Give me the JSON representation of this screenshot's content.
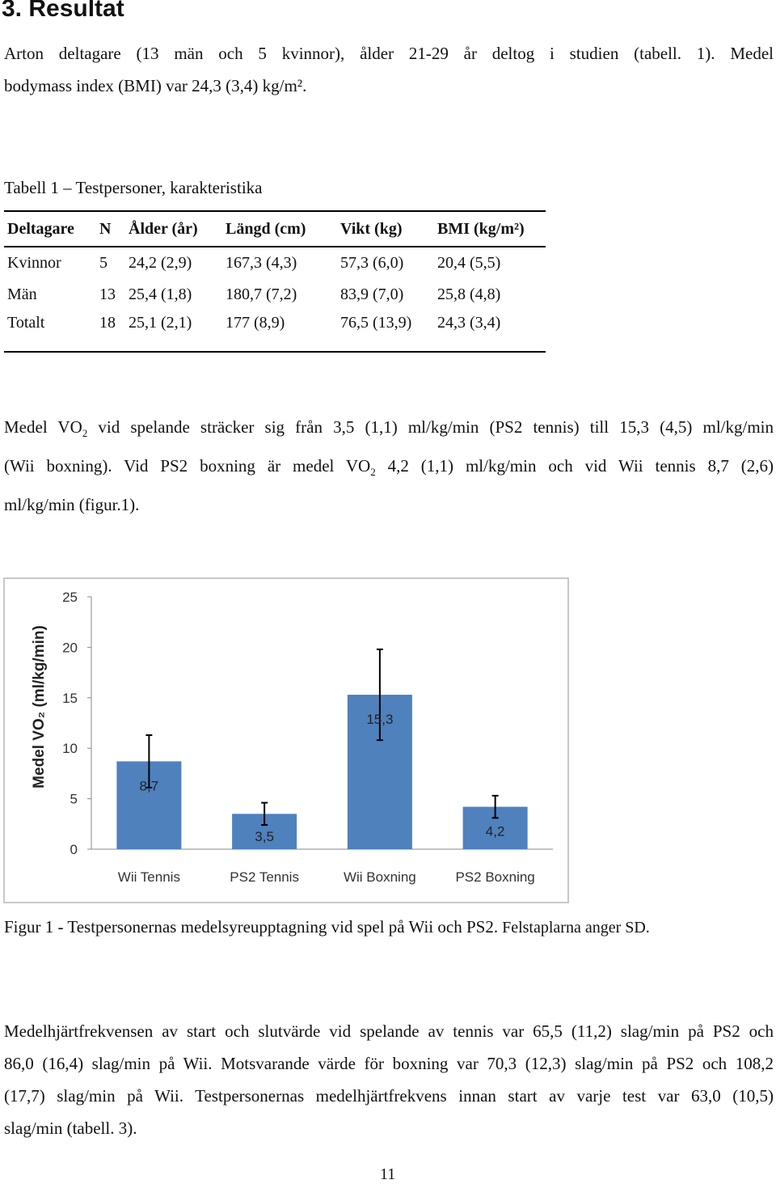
{
  "heading": "3. Resultat",
  "intro": {
    "line1": "Arton deltagare (13 män och 5 kvinnor), ålder 21-29 år deltog i studien (tabell. 1). Medel",
    "line2": "bodymass index (BMI) var 24,3 (3,4) kg/m²."
  },
  "table1": {
    "caption": "Tabell 1 – Testpersoner, karakteristika",
    "headers": [
      "Deltagare",
      "N",
      "Ålder (år)",
      "Längd (cm)",
      "Vikt (kg)",
      "BMI (kg/m²)"
    ],
    "rows": [
      [
        "Kvinnor",
        "5",
        "24,2 (2,9)",
        "167,3 (4,3)",
        "57,3 (6,0)",
        "20,4 (5,5)"
      ],
      [
        "Män",
        "13",
        "25,4 (1,8)",
        "180,7 (7,2)",
        "83,9 (7,0)",
        "25,8 (4,8)"
      ],
      [
        "Totalt",
        "18",
        "25,1 (2,1)",
        "177 (8,9)",
        "76,5 (13,9)",
        "24,3 (3,4)"
      ]
    ]
  },
  "vo2_paragraph": {
    "line1_a": "Medel VO",
    "line1_sub": "2",
    "line1_b": " vid spelande sträcker sig från 3,5 (1,1) ml/kg/min (PS2 tennis) till 15,3 (4,5) ml/kg/min",
    "line2_a": "(Wii boxning). Vid PS2 boxning är medel VO",
    "line2_sub": "2",
    "line2_b": " 4,2 (1,1) ml/kg/min och vid Wii tennis 8,7 (2,6)",
    "line3": "ml/kg/min (figur.1)."
  },
  "chart_data": {
    "type": "bar",
    "categories": [
      "Wii Tennis",
      "PS2 Tennis",
      "Wii Boxning",
      "PS2 Boxning"
    ],
    "values": [
      8.7,
      3.5,
      15.3,
      4.2
    ],
    "value_labels": [
      "8,7",
      "3,5",
      "15,3",
      "4,2"
    ],
    "error_sd": [
      2.6,
      1.1,
      4.5,
      1.1
    ],
    "ylabel": "Medel VO₂ (ml/kg/min)",
    "ylim": [
      0,
      25
    ],
    "yticks": [
      "0",
      "5",
      "10",
      "15",
      "20",
      "25"
    ],
    "bar_color": "#4f81bd",
    "grid": false
  },
  "figure_caption": {
    "main": "Figur 1 - Testpersonernas medelsyreupptagning vid spel på Wii och PS2.",
    "small": " Felstaplarna anger SD."
  },
  "heart_rate_paragraph": {
    "line1": "Medelhjärtfrekvensen av start och slutvärde vid spelande av tennis var 65,5 (11,2) slag/min på PS2 och",
    "line2": "86,0 (16,4) slag/min på Wii. Motsvarande värde för boxning var 70,3 (12,3) slag/min på PS2 och 108,2",
    "line3": "(17,7) slag/min på Wii. Testpersonernas medelhjärtfrekvens innan start av varje test var 63,0 (10,5)",
    "line4": "slag/min (tabell. 3)."
  },
  "page_number": "11"
}
